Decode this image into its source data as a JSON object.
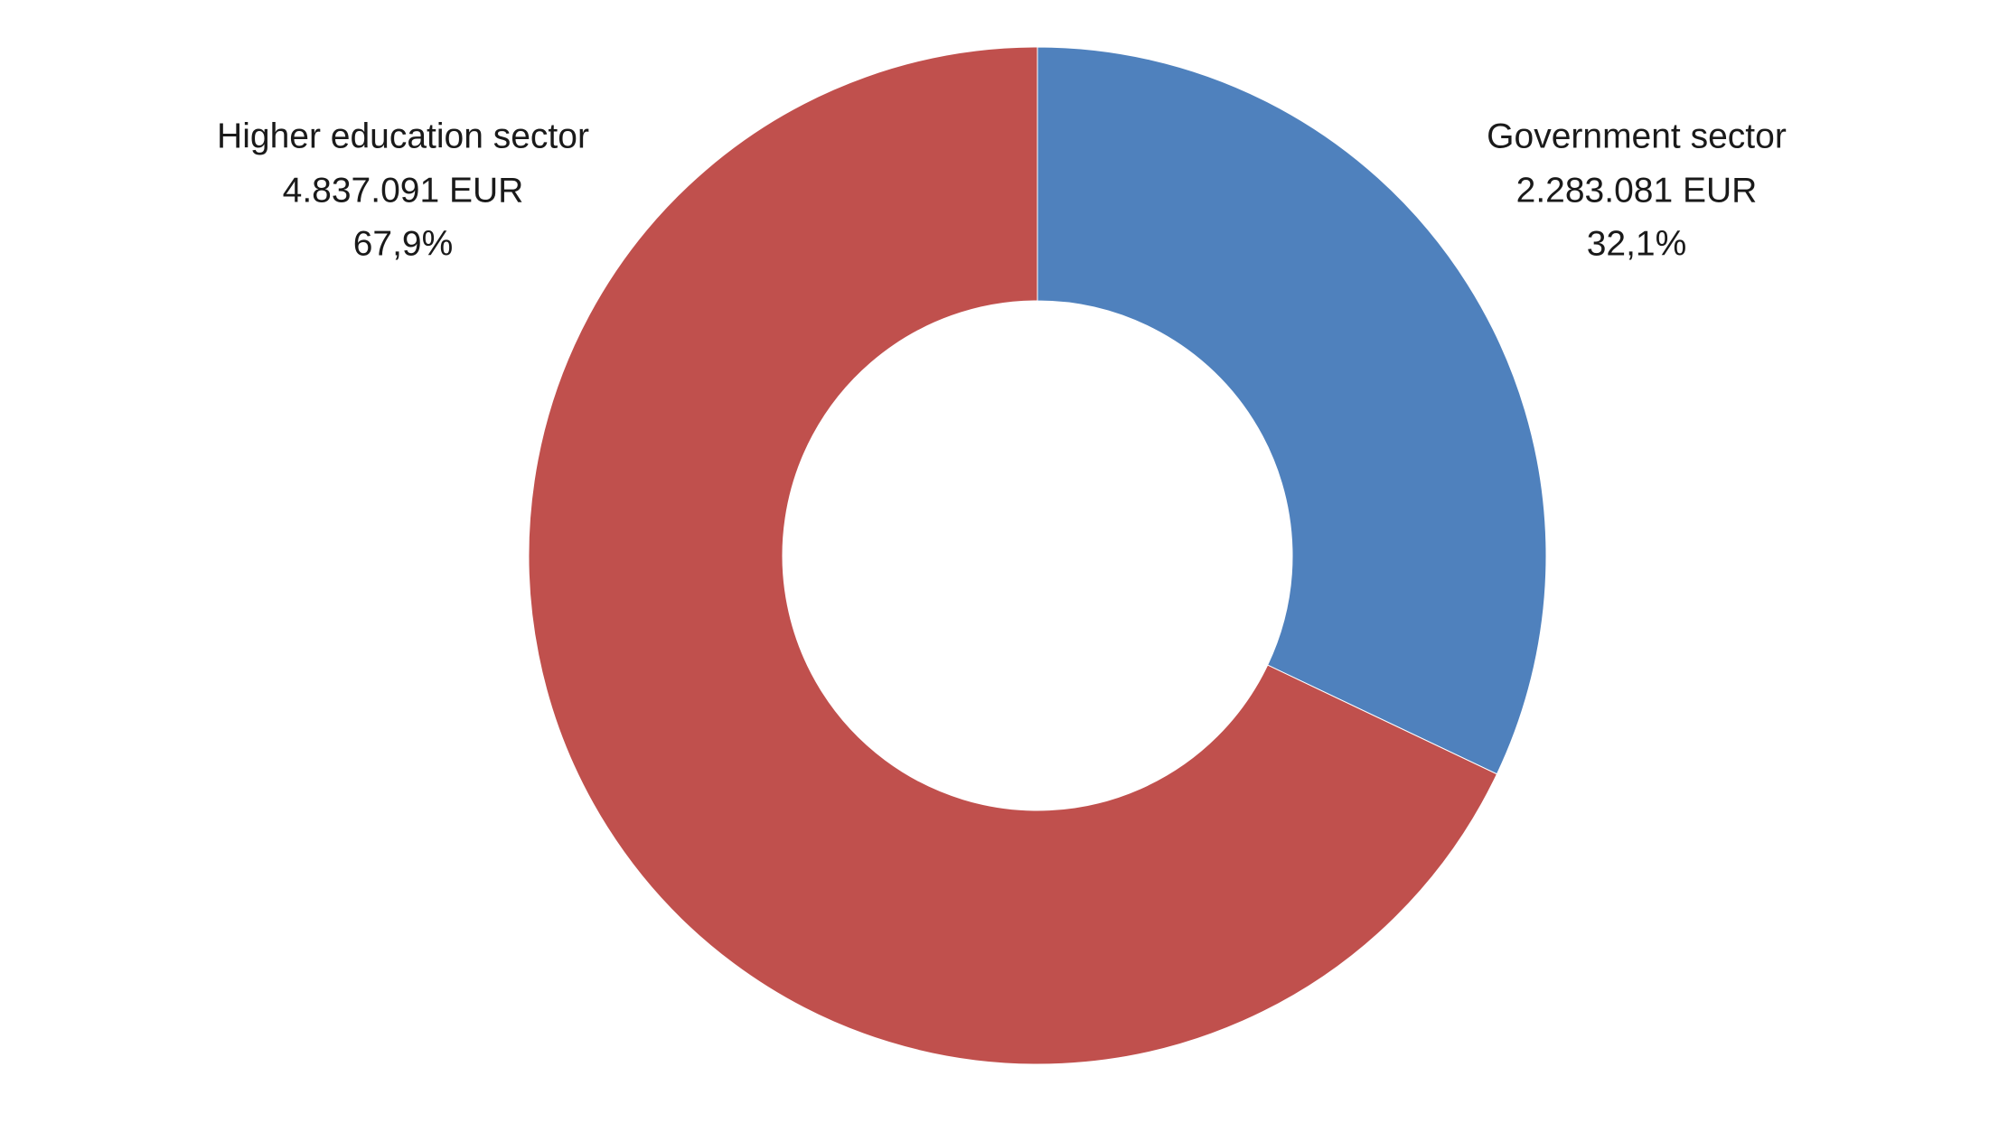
{
  "chart_data": {
    "type": "donut",
    "categories": [
      "Government sector",
      "Higher education sector"
    ],
    "values": [
      2283081,
      4837091
    ],
    "value_labels": [
      "2.283.081 EUR",
      "4.837.091 EUR"
    ],
    "percent_labels": [
      "32,1%",
      "67,9%"
    ],
    "colors": [
      "#4f81bd",
      "#c0504d"
    ]
  }
}
